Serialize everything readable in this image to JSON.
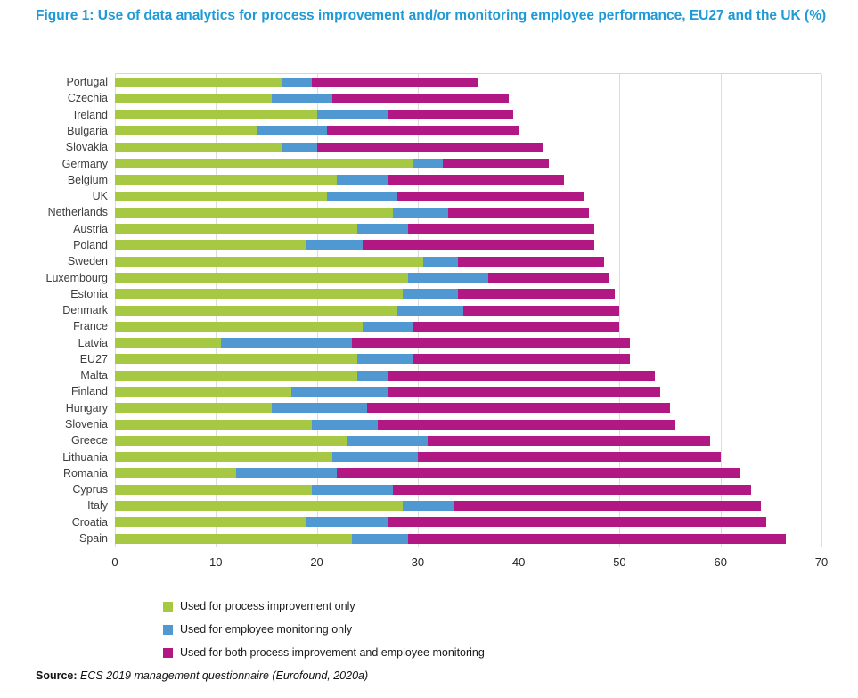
{
  "title": "Figure 1: Use of data analytics for process improvement and/or monitoring employee performance, EU27 and the UK (%)",
  "source": {
    "label": "Source:",
    "text": " ECS 2019 management questionnaire (Eurofound, 2020a)"
  },
  "colors": {
    "title_blue": "#1f9ad6",
    "process_improvement_green": "#a6c843",
    "employee_monitoring_blue": "#4f98d2",
    "both_magenta": "#b21884",
    "gridline_gray": "#dcdcdc",
    "label_gray": "#3d3d3d"
  },
  "chart_data": {
    "type": "bar",
    "orientation": "horizontal",
    "stacked": true,
    "grid": true,
    "legend_position": "bottom",
    "xlabel": "",
    "ylabel": "",
    "xlim": [
      0,
      70
    ],
    "xticks": [
      0,
      10,
      20,
      30,
      40,
      50,
      60,
      70
    ],
    "categories": [
      "Portugal",
      "Czechia",
      "Ireland",
      "Bulgaria",
      "Slovakia",
      "Germany",
      "Belgium",
      "UK",
      "Netherlands",
      "Austria",
      "Poland",
      "Sweden",
      "Luxembourg",
      "Estonia",
      "Denmark",
      "France",
      "Latvia",
      "EU27",
      "Malta",
      "Finland",
      "Hungary",
      "Slovenia",
      "Greece",
      "Lithuania",
      "Romania",
      "Cyprus",
      "Italy",
      "Croatia",
      "Spain"
    ],
    "series": [
      {
        "key": "process-improvement-only",
        "name": "Used for process improvement only",
        "color": "#a6c843",
        "values": [
          16.5,
          15.5,
          20,
          14,
          16.5,
          29.5,
          22,
          21,
          27.5,
          24,
          19,
          30.5,
          29,
          28.5,
          28,
          24.5,
          10.5,
          24,
          24,
          17.5,
          15.5,
          19.5,
          23,
          21.5,
          12,
          19.5,
          28.5,
          19,
          23.5
        ]
      },
      {
        "key": "employee-monitoring-only",
        "name": "Used for employee monitoring only",
        "color": "#4f98d2",
        "values": [
          3,
          6,
          7,
          7,
          3.5,
          3,
          5,
          7,
          5.5,
          5,
          5.5,
          3.5,
          8,
          5.5,
          6.5,
          5,
          13,
          5.5,
          3,
          9.5,
          9.5,
          6.5,
          8,
          8.5,
          10,
          8,
          5,
          8,
          5.5
        ]
      },
      {
        "key": "both-process-and-monitoring",
        "name": "Used for both process improvement and employee monitoring",
        "color": "#b21884",
        "values": [
          16.5,
          17.5,
          12.5,
          19,
          22.5,
          10.5,
          17.5,
          18.5,
          14,
          18.5,
          23,
          14.5,
          12,
          15.5,
          15.5,
          20.5,
          27.5,
          21.5,
          26.5,
          27,
          30,
          29.5,
          28,
          30,
          40,
          35.5,
          30.5,
          37.5,
          37.5
        ]
      }
    ]
  }
}
